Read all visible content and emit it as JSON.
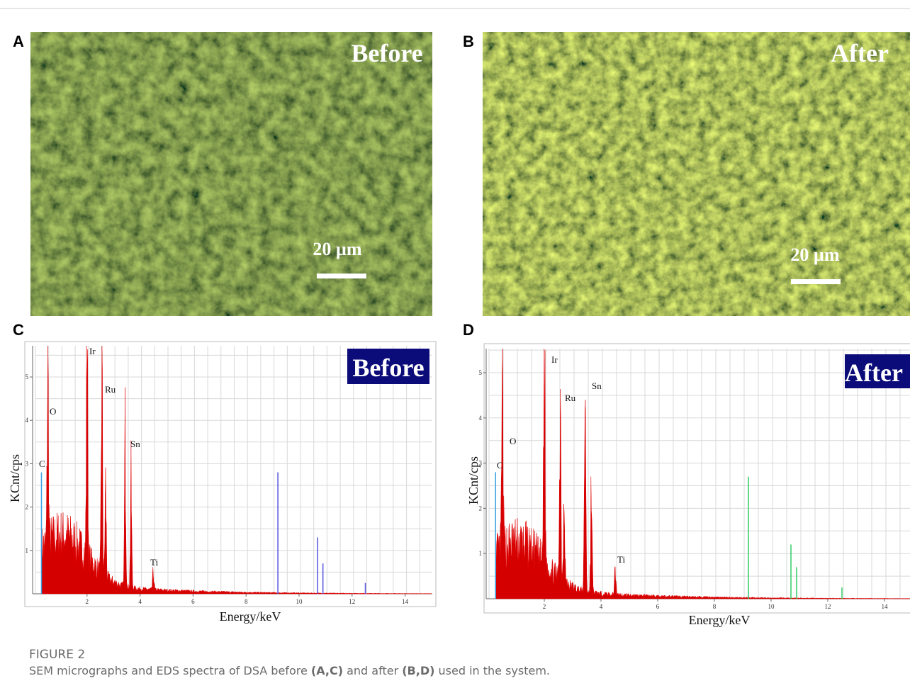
{
  "figure": {
    "panels": [
      {
        "letter": "A",
        "overlay": "Before",
        "scale_bar": "20 µm"
      },
      {
        "letter": "B",
        "overlay": "After",
        "scale_bar": "20 µm"
      },
      {
        "letter": "C",
        "overlay": "Before",
        "y_label": "KCnt/cps",
        "x_label": "Energy/keV",
        "elements": [
          "Ir",
          "Ru",
          "O",
          "Sn",
          "C",
          "Ti"
        ],
        "xticks": [
          2,
          4,
          6,
          8,
          10,
          12,
          14
        ],
        "yticks": [
          1,
          2,
          3,
          4,
          5
        ]
      },
      {
        "letter": "D",
        "overlay": "After",
        "y_label": "KCnt/cps",
        "x_label": "Energy/keV",
        "elements": [
          "Ir",
          "Sn",
          "Ru",
          "O",
          "C",
          "Ti"
        ],
        "xticks": [
          2,
          4,
          6,
          8,
          10,
          12,
          14
        ],
        "yticks": [
          1,
          2,
          3,
          4,
          5
        ]
      }
    ],
    "caption_label": "FIGURE 2",
    "caption": [
      "SEM micrographs and EDS spectra of DSA before ",
      "(A,C)",
      " and after ",
      "(B,D)",
      " used in the system."
    ]
  }
}
